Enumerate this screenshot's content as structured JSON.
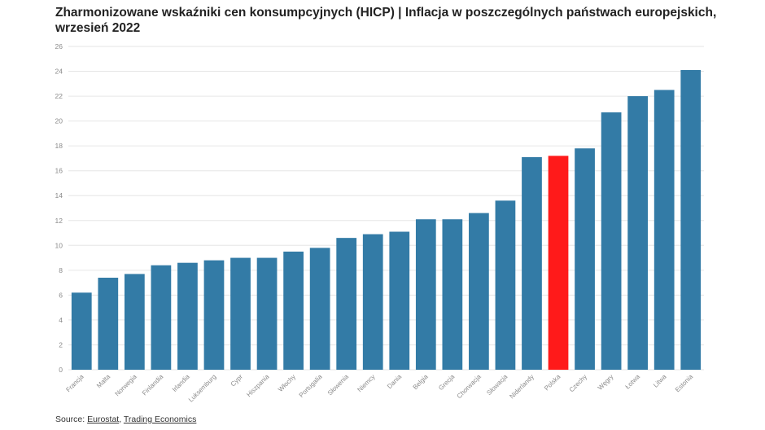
{
  "header": {
    "title": "Zharmonizowane wskaźniki cen konsumpcyjnych (HICP) | Inflacja w poszczególnych państwach europejskich, wrzesień 2022"
  },
  "footer": {
    "source_label": "Source:",
    "source_links": [
      "Eurostat",
      "Trading Economics"
    ],
    "separator": ","
  },
  "chart_data": {
    "type": "bar",
    "categories": [
      "Francja",
      "Malta",
      "Norwegia",
      "Finlandia",
      "Irlandia",
      "Luksemburg",
      "Cypr",
      "Hiszpania",
      "Włochy",
      "Portugalia",
      "Słowenia",
      "Niemcy",
      "Dania",
      "Belgia",
      "Grecja",
      "Chorwacja",
      "Słowacja",
      "Niderlandy",
      "Polska",
      "Czechy",
      "Węgry",
      "Łotwa",
      "Litwa",
      "Estonia"
    ],
    "values": [
      6.2,
      7.4,
      7.7,
      8.4,
      8.6,
      8.8,
      9.0,
      9.0,
      9.5,
      9.8,
      10.6,
      10.9,
      11.1,
      12.1,
      12.1,
      12.6,
      13.6,
      17.1,
      17.2,
      17.8,
      20.7,
      22.0,
      22.5,
      24.1
    ],
    "highlight": "Polska",
    "colors": {
      "default": "#337ba6",
      "highlight": "#ff1a1a",
      "grid": "#e6e6e6"
    },
    "ylim": [
      0,
      26
    ],
    "yticks": [
      0,
      2,
      4,
      6,
      8,
      10,
      12,
      14,
      16,
      18,
      20,
      22,
      24,
      26
    ],
    "xlabel": "",
    "ylabel": "",
    "grid": true
  }
}
